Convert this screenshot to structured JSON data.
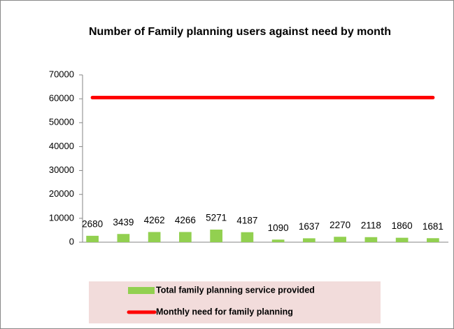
{
  "chart_data": {
    "type": "bar",
    "title": "Number of Family planning users against need by month",
    "categories": [
      null,
      null,
      null,
      null,
      null,
      null,
      null,
      null,
      null,
      null,
      null,
      null
    ],
    "series": [
      {
        "name": "Total family planning service provided",
        "type": "bar",
        "color": "#92d050",
        "values": [
          2680,
          3439,
          4262,
          4266,
          5271,
          4187,
          1090,
          1637,
          2270,
          2118,
          1860,
          1681
        ]
      },
      {
        "name": "Monthly need for family planning",
        "type": "line",
        "color": "#ff0000",
        "values": [
          60500,
          60500,
          60500,
          60500,
          60500,
          60500,
          60500,
          60500,
          60500,
          60500,
          60500,
          60500
        ]
      }
    ],
    "ylim": [
      0,
      70000
    ],
    "yticks": [
      0,
      10000,
      20000,
      30000,
      40000,
      50000,
      60000,
      70000
    ],
    "grid": false
  }
}
